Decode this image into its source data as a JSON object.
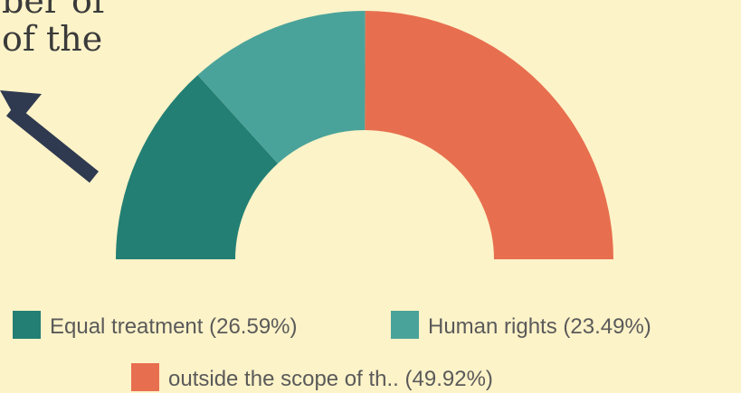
{
  "chart_data": {
    "type": "pie",
    "shape": "semicircle-donut",
    "annotation": [
      "ber of",
      "of the"
    ],
    "categories": [
      "Equal treatment",
      "Human rights",
      "outside the scope of th.."
    ],
    "values": [
      26.59,
      23.49,
      49.92
    ],
    "value_labels": [
      "(26.59%)",
      "(23.49%)",
      "(49.92%)"
    ],
    "colors": [
      "#237f74",
      "#4aa39a",
      "#e76f4f"
    ],
    "legend": "bottom"
  }
}
